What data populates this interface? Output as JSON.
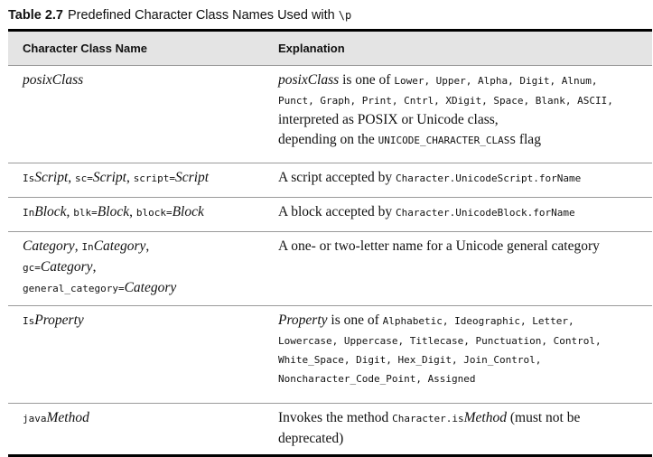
{
  "caption": {
    "number": "Table 2.7",
    "text": "Predefined Character Class Names Used with",
    "code": "\\p"
  },
  "headers": {
    "col1": "Character Class Name",
    "col2": "Explanation"
  },
  "rows": [
    {
      "name": {
        "italic": "posixClass"
      },
      "explanation": {
        "italic": "posixClass",
        "mid": " is one of ",
        "classes_line1": "Lower, Upper, Alpha, Digit, Alnum,",
        "classes_line2": "Punct, Graph, Print, Cntrl, XDigit, Space, Blank, ASCII,",
        "line3": "interpreted as POSIX or Unicode class,",
        "line4_text": "depending on the ",
        "line4_code": "UNICODE_CHARACTER_CLASS",
        "line4_end": " flag"
      }
    },
    {
      "name": {
        "p1": "Is",
        "i1": "Script",
        "sep1": ", ",
        "c2": "sc=",
        "i2": "Script",
        "sep2": ", ",
        "c3": "script=",
        "i3": "Script"
      },
      "explanation": {
        "text": "A script accepted by ",
        "code": "Character.UnicodeScript.forName"
      }
    },
    {
      "name": {
        "p1": "In",
        "i1": "Block",
        "sep1": ", ",
        "c2": "blk=",
        "i2": "Block",
        "sep2": ", ",
        "c3": "block=",
        "i3": "Block"
      },
      "explanation": {
        "text": "A block accepted by ",
        "code": "Character.UnicodeBlock.forName"
      }
    },
    {
      "name": {
        "i1": "Category",
        "sep1": ", ",
        "p2": "In",
        "i2": "Category",
        "sep2": ",",
        "c3": "gc=",
        "i3": "Category",
        "sep3": ",",
        "c4": "general_category=",
        "i4": "Category"
      },
      "explanation": {
        "text": "A one- or two-letter name for a Unicode general category"
      }
    },
    {
      "name": {
        "p1": "Is",
        "i1": "Property"
      },
      "explanation": {
        "italic": "Property",
        "mid": " is one of ",
        "line1": "Alphabetic, Ideographic, Letter,",
        "line2": "Lowercase, Uppercase, Titlecase, Punctuation, Control,",
        "line3": "White_Space, Digit, Hex_Digit, Join_Control,",
        "line4": "Noncharacter_Code_Point, Assigned"
      }
    },
    {
      "name": {
        "p1": "java",
        "i1": "Method"
      },
      "explanation": {
        "text": "Invokes the method ",
        "code": "Character.is",
        "italic": "Method",
        "end": " (must not be deprecated)"
      }
    }
  ]
}
